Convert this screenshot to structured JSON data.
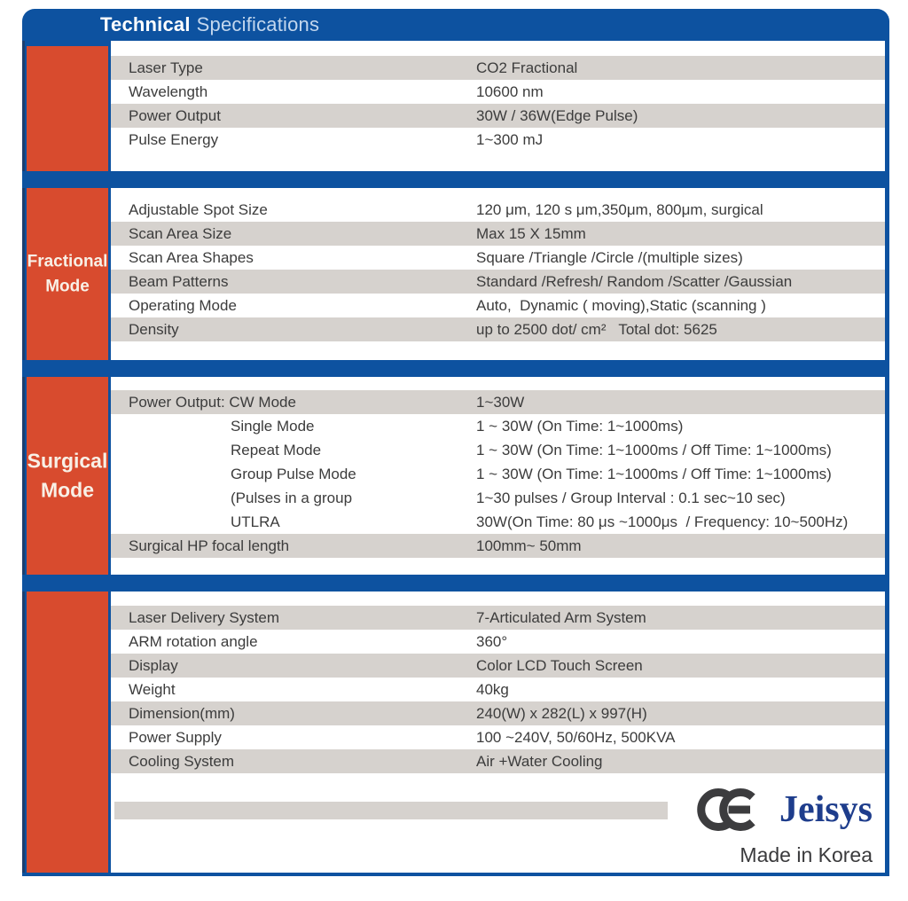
{
  "header": {
    "title_bold": "Technical",
    "title_rest": "Specifications"
  },
  "sections": [
    {
      "label": "",
      "rows": [
        {
          "label": "Laser Type",
          "value": "CO2 Fractional",
          "shaded": true,
          "indent": false
        },
        {
          "label": "Wavelength",
          "value": "10600 nm",
          "shaded": false,
          "indent": false
        },
        {
          "label": "Power Output",
          "value": "30W / 36W(Edge Pulse)",
          "shaded": true,
          "indent": false
        },
        {
          "label": "Pulse Energy",
          "value": "1~300 mJ",
          "shaded": false,
          "indent": false
        }
      ]
    },
    {
      "label": "Fractional Mode",
      "rows": [
        {
          "label": "Adjustable Spot Size",
          "value": "120 μm, 120 s μm,350μm, 800μm, surgical",
          "shaded": false,
          "indent": false
        },
        {
          "label": "Scan Area Size",
          "value": "Max 15 X 15mm",
          "shaded": true,
          "indent": false
        },
        {
          "label": "Scan Area Shapes",
          "value": "Square /Triangle /Circle /(multiple sizes)",
          "shaded": false,
          "indent": false
        },
        {
          "label": "Beam Patterns",
          "value": "Standard /Refresh/ Random /Scatter /Gaussian",
          "shaded": true,
          "indent": false
        },
        {
          "label": "Operating Mode",
          "value": "Auto,  Dynamic ( moving),Static (scanning )",
          "shaded": false,
          "indent": false
        },
        {
          "label": "Density",
          "value": "up to 2500 dot/ cm²   Total dot: 5625",
          "shaded": true,
          "indent": false
        }
      ]
    },
    {
      "label": "Surgical Mode",
      "rows": [
        {
          "label": "Power Output: CW Mode",
          "value": "1~30W",
          "shaded": true,
          "indent": false
        },
        {
          "label": "Single Mode",
          "value": "1 ~ 30W (On Time: 1~1000ms)",
          "shaded": false,
          "indent": true
        },
        {
          "label": "Repeat Mode",
          "value": "1 ~ 30W (On Time: 1~1000ms / Off Time: 1~1000ms)",
          "shaded": false,
          "indent": true
        },
        {
          "label": "Group Pulse Mode",
          "value": "1 ~ 30W (On Time: 1~1000ms / Off Time: 1~1000ms)",
          "shaded": false,
          "indent": true
        },
        {
          "label": "(Pulses in a group",
          "value": "1~30 pulses / Group Interval : 0.1 sec~10 sec)",
          "shaded": false,
          "indent": true
        },
        {
          "label": "UTLRA",
          "value": "30W(On Time: 80 μs ~1000μs  / Frequency: 10~500Hz)",
          "shaded": false,
          "indent": true
        },
        {
          "label": "Surgical HP focal length",
          "value": "100mm~ 50mm",
          "shaded": true,
          "indent": false
        }
      ]
    },
    {
      "label": "",
      "rows": [
        {
          "label": "Laser Delivery System",
          "value": "7-Articulated Arm System",
          "shaded": true,
          "indent": false
        },
        {
          "label": "ARM rotation angle",
          "value": "360°",
          "shaded": false,
          "indent": false
        },
        {
          "label": "Display",
          "value": "Color LCD Touch Screen",
          "shaded": true,
          "indent": false
        },
        {
          "label": "Weight",
          "value": "40kg",
          "shaded": false,
          "indent": false
        },
        {
          "label": "Dimension(mm)",
          "value": "240(W) x 282(L) x 997(H)",
          "shaded": true,
          "indent": false
        },
        {
          "label": "Power Supply",
          "value": "100 ~240V, 50/60Hz, 500KVA",
          "shaded": false,
          "indent": false
        },
        {
          "label": "Cooling System",
          "value": "Air +Water Cooling",
          "shaded": true,
          "indent": false
        }
      ]
    }
  ],
  "footer": {
    "ce_mark": "CE",
    "brand": "Jeisys",
    "origin": "Made in Korea"
  },
  "colors": {
    "header_blue": "#0d52a0",
    "section_red": "#d84b2e",
    "row_shade": "#d6d2ce",
    "brand_navy": "#1e3d8c"
  }
}
